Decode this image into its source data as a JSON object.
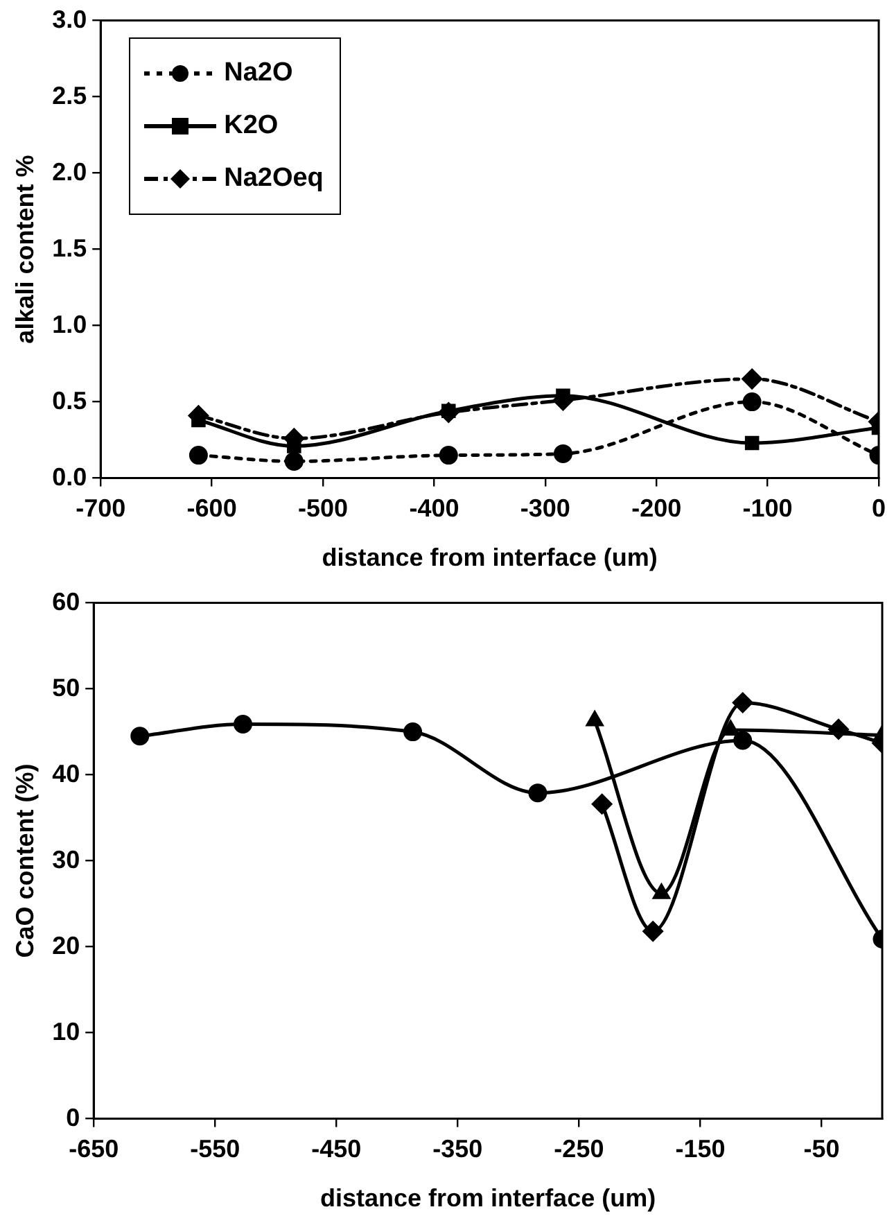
{
  "chart_data": [
    {
      "type": "line",
      "xlabel": "distance from interface (um)",
      "ylabel": "alkali content %",
      "xlim": [
        -700,
        0
      ],
      "xticks": [
        -700,
        -600,
        -500,
        -400,
        -300,
        -200,
        -100,
        0
      ],
      "ylim": [
        0,
        3
      ],
      "yticks": [
        {
          "value": 0,
          "label": "0.0"
        },
        0.5,
        {
          "value": 1,
          "label": "1.0"
        },
        1.5,
        {
          "value": 2,
          "label": "2.0"
        },
        2.5,
        {
          "value": 3,
          "label": "3.0"
        }
      ],
      "grid": false,
      "legend": "top left",
      "series": [
        {
          "name": "Na2O",
          "color": "#000000",
          "marker": "circle",
          "line_style": "dotted",
          "x": [
            -612,
            -526,
            -387,
            -284,
            -114,
            0
          ],
          "values": [
            0.15,
            0.11,
            0.15,
            0.16,
            0.5,
            0.15
          ]
        },
        {
          "name": "K2O",
          "color": "#000000",
          "marker": "square",
          "line_style": "solid",
          "x": [
            -612,
            -526,
            -387,
            -284,
            -114,
            0
          ],
          "values": [
            0.38,
            0.21,
            0.44,
            0.54,
            0.23,
            0.33
          ]
        },
        {
          "name": "Na2Oeq",
          "color": "#000000",
          "marker": "diamond",
          "line_style": "dashed",
          "x": [
            -612,
            -526,
            -387,
            -284,
            -114,
            0
          ],
          "values": [
            0.41,
            0.26,
            0.43,
            0.51,
            0.65,
            0.37
          ]
        }
      ]
    },
    {
      "type": "line",
      "xlabel": "distance from interface (um)",
      "ylabel": "CaO content (%)",
      "xlim": [
        -650,
        0
      ],
      "xticks": [
        -650,
        -550,
        -450,
        -350,
        -250,
        -150,
        -50
      ],
      "ylim": [
        0,
        60
      ],
      "yticks": [
        0,
        10,
        20,
        30,
        40,
        50,
        60
      ],
      "grid": false,
      "legend": false,
      "series": [
        {
          "color": "#000000",
          "marker": "circle",
          "line_style": "solid",
          "x": [
            -612,
            -527,
            -387,
            -284,
            -115,
            0
          ],
          "values": [
            44.5,
            45.9,
            45.0,
            37.9,
            44.0,
            20.9
          ]
        },
        {
          "color": "#000000",
          "marker": "triangle",
          "line_style": "solid",
          "x": [
            -237,
            -182,
            -125,
            0
          ],
          "values": [
            46.3,
            26.2,
            45.2,
            44.6
          ]
        },
        {
          "color": "#000000",
          "marker": "diamond",
          "line_style": "solid",
          "x": [
            -231,
            -189,
            -115,
            -36,
            0
          ],
          "values": [
            36.6,
            21.8,
            48.4,
            45.3,
            43.7
          ]
        }
      ]
    }
  ]
}
